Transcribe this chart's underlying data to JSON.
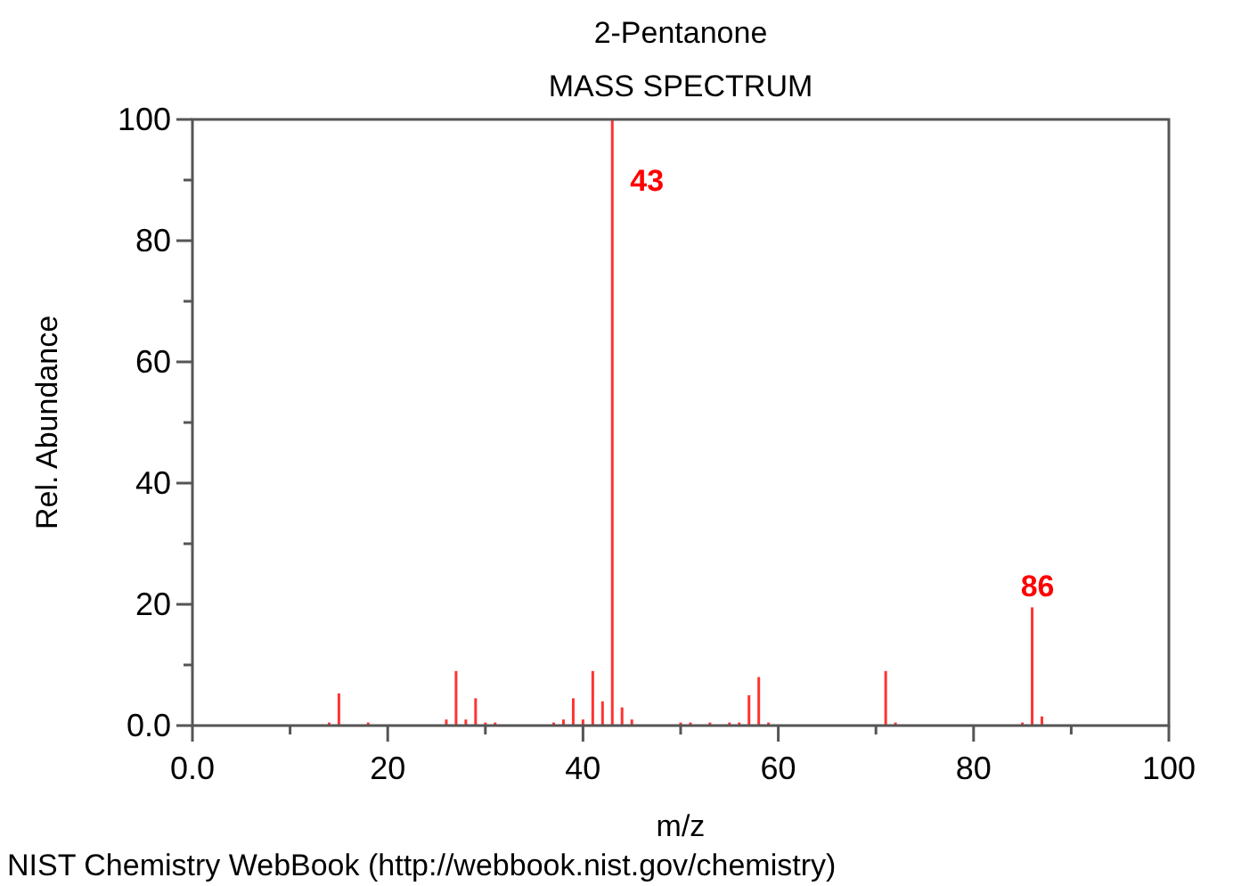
{
  "chart_data": {
    "type": "bar",
    "title": "2-Pentanone",
    "subtitle": "MASS SPECTRUM",
    "xlabel": "m/z",
    "ylabel": "Rel. Abundance",
    "annotations": [
      "NIST Chemistry WebBook (http://webbook.nist.gov/chemistry)",
      {
        "text": "43",
        "x": 43,
        "y": 100
      },
      {
        "text": "86",
        "x": 86,
        "y": 19.5
      }
    ],
    "x": [
      14,
      15,
      18,
      26,
      27,
      28,
      29,
      30,
      31,
      37,
      38,
      39,
      40,
      41,
      42,
      43,
      44,
      45,
      50,
      51,
      53,
      55,
      56,
      57,
      58,
      59,
      71,
      72,
      85,
      86,
      87
    ],
    "values": [
      0.5,
      5.3,
      0.5,
      1,
      9,
      1,
      4.5,
      0.5,
      0.5,
      0.5,
      1,
      4.5,
      1,
      9,
      4,
      100,
      3,
      1,
      0.5,
      0.5,
      0.5,
      0.5,
      0.5,
      5,
      8,
      0.5,
      9,
      0.5,
      0.5,
      19.5,
      1.5
    ],
    "color": "#ff0000",
    "xlim": [
      0,
      100
    ],
    "ylim": [
      0,
      100
    ],
    "xticks": [
      {
        "value": 0,
        "label": "0.0"
      },
      20,
      40,
      60,
      80,
      100
    ],
    "yticks": [
      {
        "value": 0,
        "label": "0.0"
      },
      20,
      40,
      60,
      80,
      100
    ],
    "grid": false
  }
}
